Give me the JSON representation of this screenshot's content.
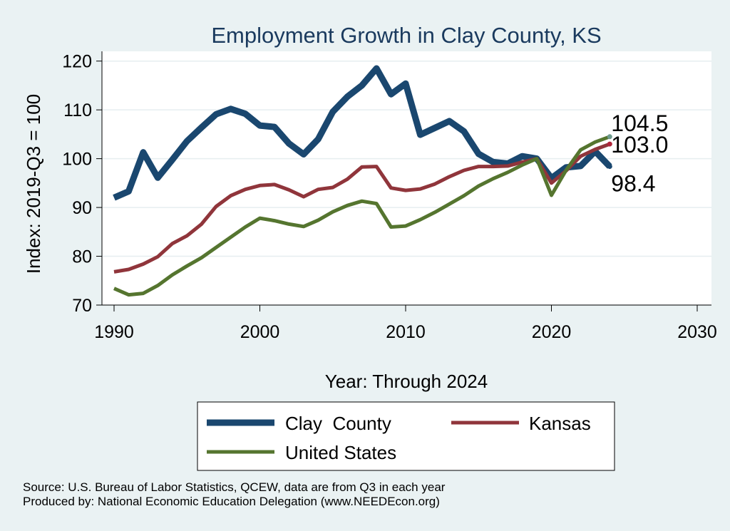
{
  "chart_data": {
    "type": "line",
    "title": "Employment Growth in Clay County, KS",
    "xlabel": "Year: Through 2024",
    "ylabel": "Index: 2019-Q3 = 100",
    "xlim": [
      1990,
      2030
    ],
    "ylim": [
      70,
      122
    ],
    "x_ticks": [
      "1990",
      "2000",
      "2010",
      "2020",
      "2030"
    ],
    "y_ticks": [
      "70",
      "80",
      "90",
      "100",
      "110",
      "120"
    ],
    "grid": true,
    "legend_position": "bottom",
    "x": [
      1990,
      1991,
      1992,
      1993,
      1994,
      1995,
      1996,
      1997,
      1998,
      1999,
      2000,
      2001,
      2002,
      2003,
      2004,
      2005,
      2006,
      2007,
      2008,
      2009,
      2010,
      2011,
      2012,
      2013,
      2014,
      2015,
      2016,
      2017,
      2018,
      2019,
      2020,
      2021,
      2022,
      2023,
      2024
    ],
    "series": [
      {
        "name": "Clay  County",
        "color": "#1a476f",
        "end_label": "98.4",
        "values": [
          92.0,
          93.3,
          101.3,
          96.1,
          99.8,
          103.6,
          106.4,
          109.1,
          110.2,
          109.2,
          106.8,
          106.5,
          103.1,
          100.9,
          104.0,
          109.6,
          112.7,
          115.0,
          118.5,
          113.2,
          115.4,
          104.9,
          106.3,
          107.7,
          105.6,
          101.0,
          99.3,
          99.0,
          100.5,
          100.0,
          96.0,
          98.2,
          98.5,
          101.5,
          98.4
        ]
      },
      {
        "name": "Kansas",
        "color": "#90353b",
        "end_label": "103.0",
        "values": [
          76.8,
          77.3,
          78.4,
          79.9,
          82.6,
          84.2,
          86.6,
          90.2,
          92.4,
          93.7,
          94.5,
          94.7,
          93.6,
          92.2,
          93.7,
          94.1,
          95.8,
          98.3,
          98.4,
          94.0,
          93.5,
          93.8,
          94.8,
          96.3,
          97.6,
          98.4,
          98.4,
          98.5,
          99.3,
          100.0,
          95.0,
          97.5,
          100.5,
          101.9,
          103.0
        ]
      },
      {
        "name": "United States",
        "color": "#55752f",
        "end_label": "104.5",
        "values": [
          73.4,
          72.1,
          72.4,
          74.0,
          76.2,
          78.0,
          79.7,
          81.8,
          83.9,
          86.0,
          87.8,
          87.3,
          86.6,
          86.1,
          87.4,
          89.1,
          90.4,
          91.3,
          90.8,
          86.0,
          86.2,
          87.5,
          89.0,
          90.7,
          92.4,
          94.4,
          95.9,
          97.2,
          98.7,
          100.0,
          92.5,
          97.6,
          101.8,
          103.4,
          104.5
        ]
      }
    ]
  },
  "source_note": "Source: U.S. Bureau of Labor Statistics, QCEW, data are from Q3 in each year",
  "producer_note": "Produced by: National Economic Education Delegation (www.NEEDEcon.org)"
}
